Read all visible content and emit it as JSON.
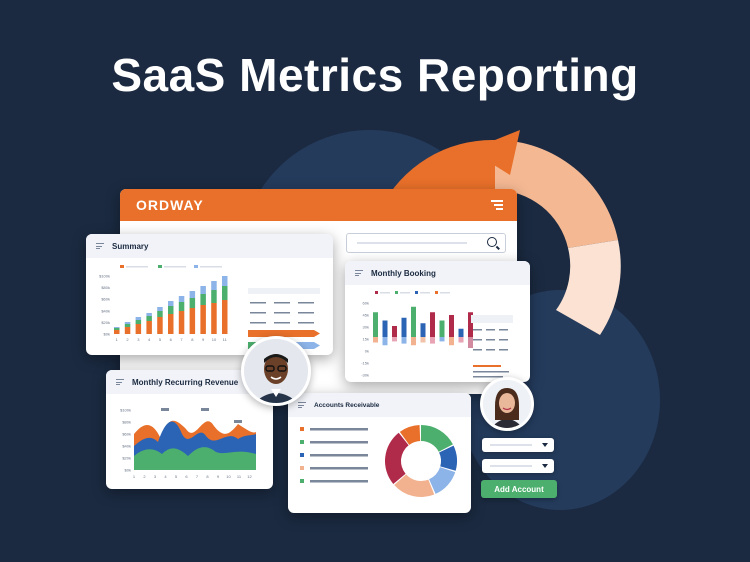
{
  "headline": "SaaS Metrics Reporting",
  "brand": "ORDWAY",
  "colors": {
    "background": "#1b2a41",
    "orange": "#e8702a",
    "green": "#4caf6e",
    "blue": "#2b63b5",
    "light_blue": "#8db4e8",
    "crimson": "#b02a4a",
    "peach": "#f2b28f"
  },
  "icons": [
    "menu-icon",
    "search-icon",
    "hamburger-icon",
    "chevron-down-icon"
  ],
  "summary": {
    "title": "Summary",
    "chart_data": {
      "type": "bar",
      "categories": [
        "1",
        "2",
        "3",
        "4",
        "5",
        "6",
        "7",
        "8",
        "9",
        "10",
        "11"
      ],
      "yticks": [
        "$0k",
        "$20k",
        "$40k",
        "$60k",
        "$80k",
        "$100k"
      ],
      "series": [
        {
          "values": [
            4,
            7,
            10,
            13,
            17,
            20,
            23,
            26,
            29,
            31,
            34
          ]
        },
        {
          "values": [
            2,
            3,
            4,
            5,
            6,
            8,
            9,
            10,
            11,
            13,
            14
          ]
        },
        {
          "values": [
            1,
            2,
            3,
            3,
            4,
            5,
            6,
            7,
            8,
            9,
            10
          ]
        }
      ]
    }
  },
  "booking": {
    "title": "Monthly Booking",
    "chart_data": {
      "type": "bar",
      "yticks": [
        "60k",
        "45k",
        "30k",
        "15k",
        "0k",
        "-15k",
        "-30k"
      ],
      "series": [
        {
          "values": [
            45,
            30,
            20,
            35,
            55,
            25,
            45,
            30,
            40,
            15,
            45
          ]
        },
        {
          "values": [
            -10,
            -15,
            -8,
            -12,
            -15,
            -10,
            -12,
            -8,
            -15,
            -10,
            -20
          ]
        }
      ]
    }
  },
  "mrr": {
    "title": "Monthly Recurring Revenue",
    "chart_data": {
      "type": "area",
      "categories": [
        "1",
        "2",
        "3",
        "4",
        "5",
        "6",
        "7",
        "8",
        "9",
        "10",
        "11",
        "12"
      ],
      "yticks": [
        "$100k",
        "$80k",
        "$60k",
        "$40k",
        "$20k",
        "$0k"
      ]
    }
  },
  "ar": {
    "title": "Accounts Receivable",
    "chart_data": {
      "type": "pie",
      "values": [
        18,
        12,
        14,
        20,
        26,
        10
      ]
    }
  },
  "add_account": "Add Account"
}
